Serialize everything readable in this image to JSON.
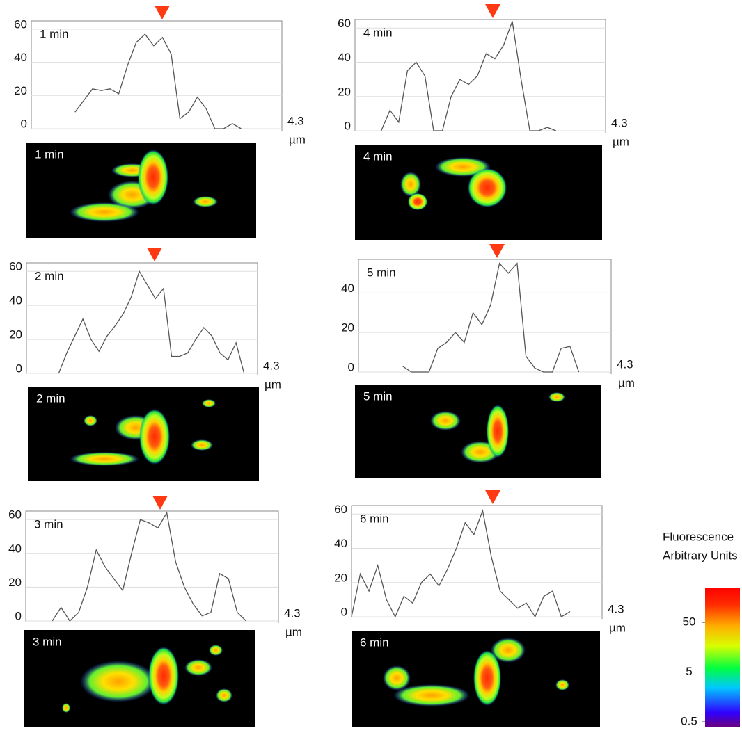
{
  "chart_data": [
    {
      "type": "line",
      "annotation": "1 min",
      "x": [
        0,
        0.15,
        0.3,
        0.45,
        0.6,
        0.75,
        0.9,
        1.05,
        1.2,
        1.35,
        1.5,
        1.65,
        1.8,
        1.95,
        2.1,
        2.25,
        2.4,
        2.55,
        2.7,
        2.85,
        3.0,
        3.15,
        3.3,
        3.45,
        3.6,
        3.75,
        3.9,
        4.05,
        4.2
      ],
      "values": [
        null,
        null,
        null,
        null,
        null,
        10,
        17,
        24,
        23,
        24,
        21,
        38,
        52,
        57,
        50,
        55,
        45,
        6,
        10,
        19,
        12,
        0,
        0,
        3,
        0,
        null,
        null,
        null,
        null
      ],
      "xlim": [
        0,
        4.3
      ],
      "xticks": [
        4.3
      ],
      "x_label": "µm",
      "ylim": [
        0,
        65
      ],
      "yticks": [
        0,
        20,
        40,
        60
      ],
      "grid": true,
      "color": "#555555"
    },
    {
      "type": "line",
      "annotation": "4 min",
      "x": [
        0,
        0.15,
        0.3,
        0.45,
        0.6,
        0.75,
        0.9,
        1.05,
        1.2,
        1.35,
        1.5,
        1.65,
        1.8,
        1.95,
        2.1,
        2.25,
        2.4,
        2.55,
        2.7,
        2.85,
        3.0,
        3.15,
        3.3,
        3.45,
        3.6,
        3.75,
        3.9,
        4.05,
        4.2
      ],
      "values": [
        null,
        null,
        null,
        0,
        12,
        5,
        35,
        40,
        32,
        0,
        0,
        20,
        30,
        27,
        32,
        45,
        42,
        50,
        64,
        30,
        0,
        0,
        2,
        0,
        null,
        null,
        null,
        null,
        null
      ],
      "xlim": [
        0,
        4.3
      ],
      "xticks": [
        4.3
      ],
      "x_label": "µm",
      "ylim": [
        0,
        65
      ],
      "yticks": [
        0,
        20,
        40,
        60
      ],
      "grid": true,
      "color": "#555555"
    },
    {
      "type": "line",
      "annotation": "2 min",
      "x": [
        0,
        0.15,
        0.3,
        0.45,
        0.6,
        0.75,
        0.9,
        1.05,
        1.2,
        1.35,
        1.5,
        1.65,
        1.8,
        1.95,
        2.1,
        2.25,
        2.4,
        2.55,
        2.7,
        2.85,
        3.0,
        3.15,
        3.3,
        3.45,
        3.6,
        3.75,
        3.9,
        4.05,
        4.2
      ],
      "values": [
        null,
        null,
        null,
        null,
        0,
        12,
        22,
        32,
        20,
        13,
        22,
        28,
        35,
        45,
        60,
        52,
        44,
        50,
        10,
        10,
        12,
        20,
        27,
        22,
        12,
        8,
        18,
        0,
        null
      ],
      "xlim": [
        0,
        4.3
      ],
      "xticks": [
        4.3
      ],
      "x_label": "µm",
      "ylim": [
        0,
        65
      ],
      "yticks": [
        0,
        20,
        40,
        60
      ],
      "grid": true,
      "color": "#555555"
    },
    {
      "type": "line",
      "annotation": "5 min",
      "x": [
        0,
        0.15,
        0.3,
        0.45,
        0.6,
        0.75,
        0.9,
        1.05,
        1.2,
        1.35,
        1.5,
        1.65,
        1.8,
        1.95,
        2.1,
        2.25,
        2.4,
        2.55,
        2.7,
        2.85,
        3.0,
        3.15,
        3.3,
        3.45,
        3.6,
        3.75,
        3.9,
        4.05,
        4.2
      ],
      "values": [
        null,
        null,
        null,
        null,
        null,
        3,
        0,
        0,
        0,
        12,
        15,
        20,
        15,
        30,
        24,
        34,
        55,
        50,
        55,
        8,
        2,
        0,
        0,
        12,
        13,
        0,
        null,
        null,
        null
      ],
      "xlim": [
        0,
        4.3
      ],
      "xticks": [
        4.3
      ],
      "x_label": "µm",
      "ylim": [
        0,
        57
      ],
      "yticks": [
        0,
        20,
        40
      ],
      "grid": true,
      "color": "#555555"
    },
    {
      "type": "line",
      "annotation": "3 min",
      "x": [
        0,
        0.15,
        0.3,
        0.45,
        0.6,
        0.75,
        0.9,
        1.05,
        1.2,
        1.35,
        1.5,
        1.65,
        1.8,
        1.95,
        2.1,
        2.25,
        2.4,
        2.55,
        2.7,
        2.85,
        3.0,
        3.15,
        3.3,
        3.45,
        3.6,
        3.75,
        3.9,
        4.05,
        4.2
      ],
      "values": [
        null,
        null,
        null,
        0,
        8,
        0,
        5,
        20,
        42,
        32,
        25,
        18,
        40,
        60,
        58,
        55,
        64,
        35,
        20,
        10,
        3,
        5,
        28,
        25,
        5,
        0,
        null,
        null,
        null
      ],
      "xlim": [
        0,
        4.3
      ],
      "xticks": [
        4.3
      ],
      "x_label": "µm",
      "ylim": [
        0,
        65
      ],
      "yticks": [
        0,
        20,
        40,
        60
      ],
      "grid": true,
      "color": "#555555"
    },
    {
      "type": "line",
      "annotation": "6 min",
      "x": [
        0,
        0.15,
        0.3,
        0.45,
        0.6,
        0.75,
        0.9,
        1.05,
        1.2,
        1.35,
        1.5,
        1.65,
        1.8,
        1.95,
        2.1,
        2.25,
        2.4,
        2.55,
        2.7,
        2.85,
        3.0,
        3.15,
        3.3,
        3.45,
        3.6,
        3.75,
        3.9,
        4.05,
        4.2
      ],
      "values": [
        0,
        25,
        15,
        30,
        10,
        0,
        12,
        8,
        20,
        25,
        18,
        28,
        40,
        55,
        48,
        62,
        35,
        15,
        10,
        5,
        8,
        0,
        12,
        15,
        0,
        3,
        null,
        null,
        null
      ],
      "xlim": [
        0,
        4.3
      ],
      "xticks": [
        4.3
      ],
      "x_label": "µm",
      "ylim": [
        0,
        65
      ],
      "yticks": [
        0,
        20,
        40,
        60
      ],
      "grid": true,
      "color": "#555555"
    },
    {
      "type": "colorbar",
      "title": [
        "Fluorescence",
        "Arbitrary Units"
      ],
      "log": true,
      "lim": [
        0.4,
        250
      ],
      "ticks": [
        0.5,
        5,
        50
      ]
    }
  ]
}
